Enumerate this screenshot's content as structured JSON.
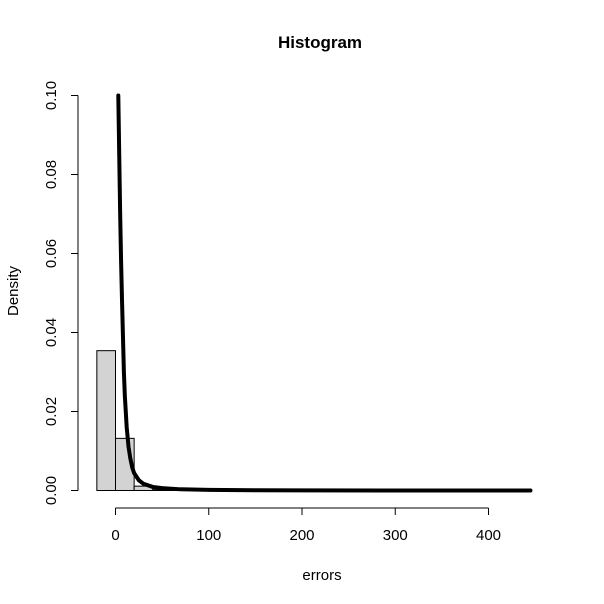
{
  "chart_data": {
    "type": "bar",
    "title": "Histogram",
    "xlabel": "errors",
    "ylabel": "Density",
    "xlim": [
      -20,
      450
    ],
    "ylim": [
      0,
      0.1
    ],
    "x_ticks": [
      0,
      100,
      200,
      300,
      400
    ],
    "x_tick_labels": [
      "0",
      "100",
      "200",
      "300",
      "400"
    ],
    "y_ticks": [
      0,
      0.02,
      0.04,
      0.06,
      0.08,
      0.1
    ],
    "y_tick_labels": [
      "0.00",
      "0.02",
      "0.04",
      "0.06",
      "0.08",
      "0.10"
    ],
    "bar_color": "#d3d3d3",
    "bins": [
      {
        "x0": -20,
        "x1": 0,
        "density": 0.0354
      },
      {
        "x0": 0,
        "x1": 20,
        "density": 0.0132
      },
      {
        "x0": 20,
        "x1": 40,
        "density": 0.0011
      },
      {
        "x0": 40,
        "x1": 60,
        "density": 0.0002
      },
      {
        "x0": 60,
        "x1": 80,
        "density": 0.0001
      },
      {
        "x0": 80,
        "x1": 100,
        "density": 0.0
      }
    ],
    "curve": {
      "name": "",
      "points": [
        [
          3,
          0.1
        ],
        [
          4,
          0.085
        ],
        [
          5,
          0.07
        ],
        [
          6,
          0.058
        ],
        [
          7,
          0.048
        ],
        [
          8,
          0.039
        ],
        [
          9,
          0.03
        ],
        [
          10,
          0.024
        ],
        [
          12,
          0.016
        ],
        [
          14,
          0.011
        ],
        [
          16,
          0.008
        ],
        [
          18,
          0.0058
        ],
        [
          20,
          0.0044
        ],
        [
          25,
          0.0026
        ],
        [
          30,
          0.0017
        ],
        [
          40,
          0.0009
        ],
        [
          50,
          0.0006
        ],
        [
          70,
          0.0003
        ],
        [
          100,
          0.00015
        ],
        [
          150,
          6e-05
        ],
        [
          200,
          3e-05
        ],
        [
          300,
          1e-05
        ],
        [
          445,
          0.0
        ]
      ]
    }
  }
}
